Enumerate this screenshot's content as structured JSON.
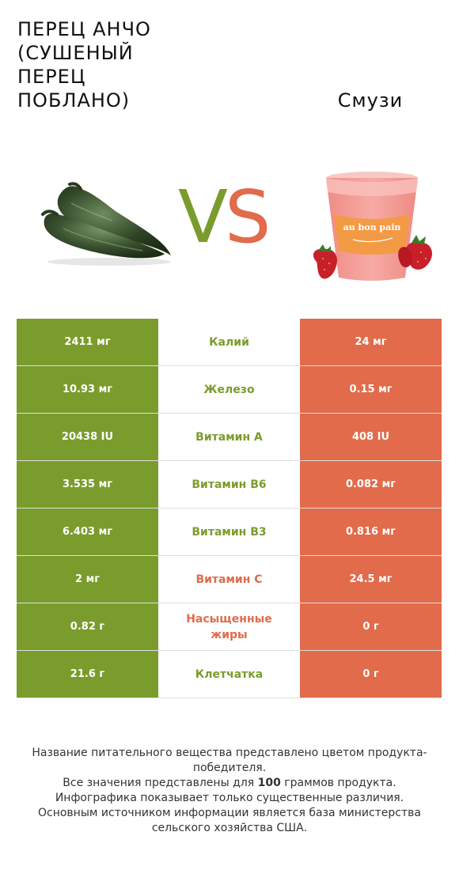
{
  "header": {
    "left_title": "Перец анчо (сушеный перец поблано)",
    "right_title": "Смузи",
    "vs_v": "V",
    "vs_s": "S"
  },
  "images": {
    "left": "dried-poblano-pepper-image",
    "right": "strawberry-smoothie-cup-image",
    "cup_brand": "au bon pain"
  },
  "colors": {
    "left_product": "#7a9c2c",
    "right_product": "#e16b4a"
  },
  "rows": [
    {
      "left": "2411 мг",
      "nutrient": "Калий",
      "right": "24 мг",
      "winner": "left"
    },
    {
      "left": "10.93 мг",
      "nutrient": "Железо",
      "right": "0.15 мг",
      "winner": "left"
    },
    {
      "left": "20438 IU",
      "nutrient": "Витамин A",
      "right": "408 IU",
      "winner": "left"
    },
    {
      "left": "3.535 мг",
      "nutrient": "Витамин B6",
      "right": "0.082 мг",
      "winner": "left"
    },
    {
      "left": "6.403 мг",
      "nutrient": "Витамин B3",
      "right": "0.816 мг",
      "winner": "left"
    },
    {
      "left": "2 мг",
      "nutrient": "Витамин C",
      "right": "24.5 мг",
      "winner": "right"
    },
    {
      "left": "0.82 г",
      "nutrient": "Насыщенные жиры",
      "right": "0 г",
      "winner": "right"
    },
    {
      "left": "21.6 г",
      "nutrient": "Клетчатка",
      "right": "0 г",
      "winner": "left"
    }
  ],
  "footer": {
    "line1": "Название питательного вещества представлено цветом продукта-победителя.",
    "line2_pre": "Все значения представлены для ",
    "line2_bold": "100",
    "line2_post": " граммов продукта.",
    "line3": "Инфографика показывает только существенные различия.",
    "line4": "Основным источником информации является база министерства сельского хозяйства США."
  }
}
